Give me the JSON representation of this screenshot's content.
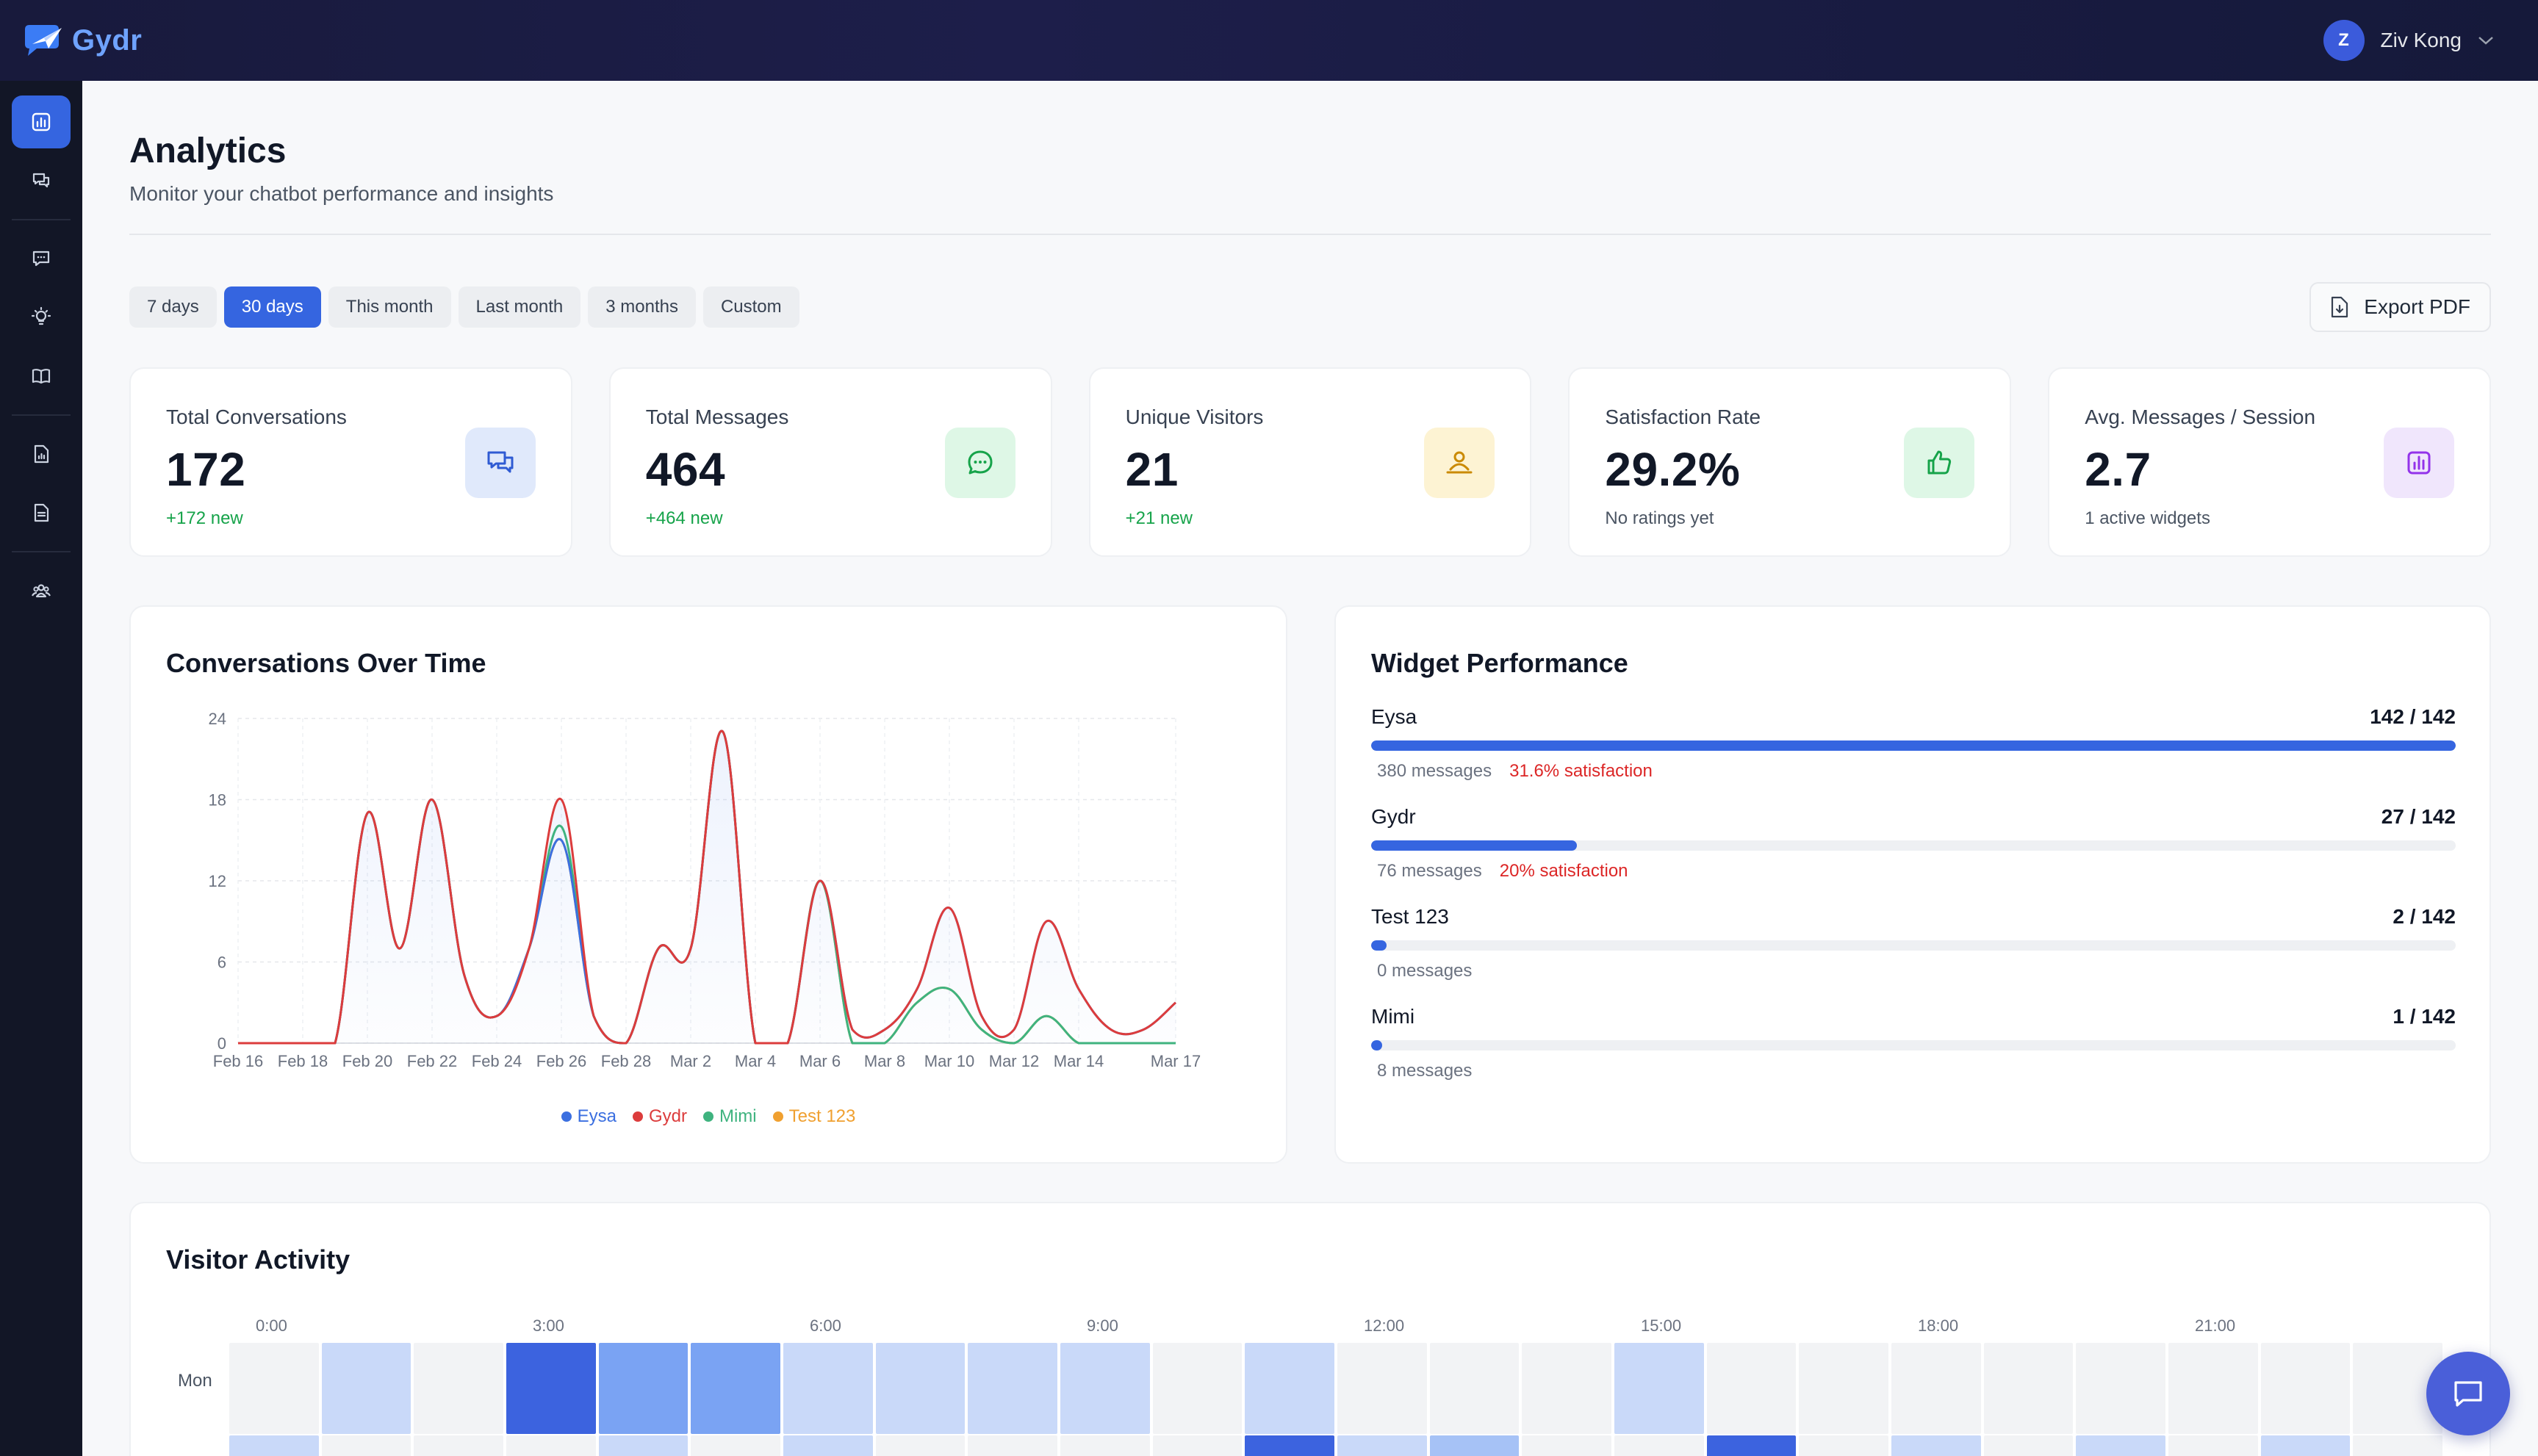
{
  "brand": {
    "name": "Gydr"
  },
  "user": {
    "initial": "Z",
    "name": "Ziv Kong"
  },
  "sidebar": {
    "items": [
      {
        "icon": "bar-chart-icon",
        "active": true
      },
      {
        "icon": "chats-icon"
      },
      {
        "icon": "message-icon"
      },
      {
        "icon": "lightbulb-icon"
      },
      {
        "icon": "book-icon"
      },
      {
        "icon": "file-chart-icon"
      },
      {
        "icon": "document-icon"
      },
      {
        "icon": "users-icon"
      }
    ]
  },
  "page": {
    "title": "Analytics",
    "subtitle": "Monitor your chatbot performance and insights"
  },
  "ranges": [
    "7 days",
    "30 days",
    "This month",
    "Last month",
    "3 months",
    "Custom"
  ],
  "active_range": "30 days",
  "export": {
    "label": "Export PDF"
  },
  "stats": [
    {
      "label": "Total Conversations",
      "value": "172",
      "note": "+172 new",
      "note_color": "#16a34a",
      "icon": "chats-icon",
      "icon_bg": "#e0e9fb",
      "icon_color": "#2f5bd3"
    },
    {
      "label": "Total Messages",
      "value": "464",
      "note": "+464 new",
      "note_color": "#16a34a",
      "icon": "message-dots-icon",
      "icon_bg": "#def7e6",
      "icon_color": "#16a34a"
    },
    {
      "label": "Unique Visitors",
      "value": "21",
      "note": "+21 new",
      "note_color": "#16a34a",
      "icon": "visitor-icon",
      "icon_bg": "#fdf3d3",
      "icon_color": "#ca8a04"
    },
    {
      "label": "Satisfaction Rate",
      "value": "29.2%",
      "note": "No ratings yet",
      "note_color": "#4b5563",
      "icon": "thumbs-up-icon",
      "icon_bg": "#def7e6",
      "icon_color": "#16a34a"
    },
    {
      "label": "Avg. Messages / Session",
      "value": "2.7",
      "note": "1 active widgets",
      "note_color": "#4b5563",
      "icon": "bar-chart-icon",
      "icon_bg": "#f0e6fc",
      "icon_color": "#9333ea"
    }
  ],
  "conversations_chart": {
    "title": "Conversations Over Time"
  },
  "chart_data": {
    "type": "line",
    "title": "Conversations Over Time",
    "x": [
      "Feb 16",
      "Feb 17",
      "Feb 18",
      "Feb 19",
      "Feb 20",
      "Feb 21",
      "Feb 22",
      "Feb 23",
      "Feb 24",
      "Feb 25",
      "Feb 26",
      "Feb 27",
      "Feb 28",
      "Mar 1",
      "Mar 2",
      "Mar 3",
      "Mar 4",
      "Mar 5",
      "Mar 6",
      "Mar 7",
      "Mar 8",
      "Mar 9",
      "Mar 10",
      "Mar 11",
      "Mar 12",
      "Mar 13",
      "Mar 14",
      "Mar 15",
      "Mar 16",
      "Mar 17"
    ],
    "x_tick_labels": [
      "Feb 16",
      "Feb 18",
      "Feb 20",
      "Feb 22",
      "Feb 24",
      "Feb 26",
      "Feb 28",
      "Mar 2",
      "Mar 4",
      "Mar 6",
      "Mar 8",
      "Mar 10",
      "Mar 12",
      "Mar 14",
      "Mar 17"
    ],
    "ylim": [
      0,
      24
    ],
    "y_ticks": [
      0,
      6,
      12,
      18,
      24
    ],
    "grid": true,
    "legend_position": "bottom",
    "series": [
      {
        "name": "Eysa",
        "color": "#3b6fe0",
        "values": [
          0,
          0,
          0,
          0,
          17,
          7,
          18,
          5,
          2,
          7,
          15,
          2,
          0,
          7,
          7,
          23,
          0,
          0,
          12,
          1,
          1,
          4,
          10,
          2,
          1,
          9,
          4,
          1,
          1,
          3
        ]
      },
      {
        "name": "Gydr",
        "color": "#dc3c3c",
        "values": [
          0,
          0,
          0,
          0,
          17,
          7,
          18,
          5,
          2,
          7,
          18,
          2,
          0,
          7,
          7,
          23,
          0,
          0,
          12,
          1,
          1,
          4,
          10,
          2,
          1,
          9,
          4,
          1,
          1,
          3
        ]
      },
      {
        "name": "Mimi",
        "color": "#3fb37f",
        "values": [
          0,
          0,
          0,
          0,
          17,
          7,
          18,
          5,
          2,
          7,
          16,
          2,
          0,
          7,
          7,
          23,
          0,
          0,
          12,
          0,
          0,
          3,
          4,
          1,
          0,
          2,
          0,
          0,
          0,
          0
        ]
      },
      {
        "name": "Test 123",
        "color": "#f0a030",
        "values": [
          0,
          0,
          0,
          0,
          17,
          7,
          18,
          5,
          2,
          7,
          15,
          2,
          0,
          7,
          7,
          23,
          0,
          0,
          12,
          0,
          0,
          3,
          4,
          1,
          0,
          2,
          0,
          0,
          0,
          0
        ]
      }
    ]
  },
  "widget_performance": {
    "title": "Widget Performance",
    "rows": [
      {
        "name": "Eysa",
        "total": "142 / 142",
        "fraction": 1.0,
        "messages": "380 messages",
        "satisfaction": "31.6% satisfaction"
      },
      {
        "name": "Gydr",
        "total": "27 / 142",
        "fraction": 0.19,
        "messages": "76 messages",
        "satisfaction": "20% satisfaction"
      },
      {
        "name": "Test 123",
        "total": "2 / 142",
        "fraction": 0.014,
        "messages": "0 messages",
        "satisfaction": ""
      },
      {
        "name": "Mimi",
        "total": "1 / 142",
        "fraction": 0.007,
        "messages": "8 messages",
        "satisfaction": ""
      }
    ]
  },
  "visitor_activity": {
    "title": "Visitor Activity",
    "hour_labels": [
      "0:00",
      "3:00",
      "6:00",
      "9:00",
      "12:00",
      "15:00",
      "18:00",
      "21:00"
    ],
    "rows": [
      {
        "day": "Mon",
        "levels": [
          0,
          1,
          0,
          4,
          3,
          3,
          1,
          1,
          1,
          1,
          0,
          1,
          0,
          0,
          0,
          1,
          0,
          0,
          0,
          0,
          0,
          0,
          0,
          0
        ]
      },
      {
        "day": "",
        "levels": [
          1,
          0,
          0,
          0,
          1,
          0,
          1,
          0,
          0,
          0,
          0,
          4,
          1,
          2,
          0,
          0,
          4,
          0,
          1,
          0,
          1,
          0,
          1,
          0
        ]
      }
    ],
    "level_colors": [
      "#f2f3f5",
      "#c9d9f9",
      "#a6c2f6",
      "#7aa3f3",
      "#3c63df"
    ]
  },
  "chat_button": {
    "icon": "chat-bubble-icon"
  }
}
